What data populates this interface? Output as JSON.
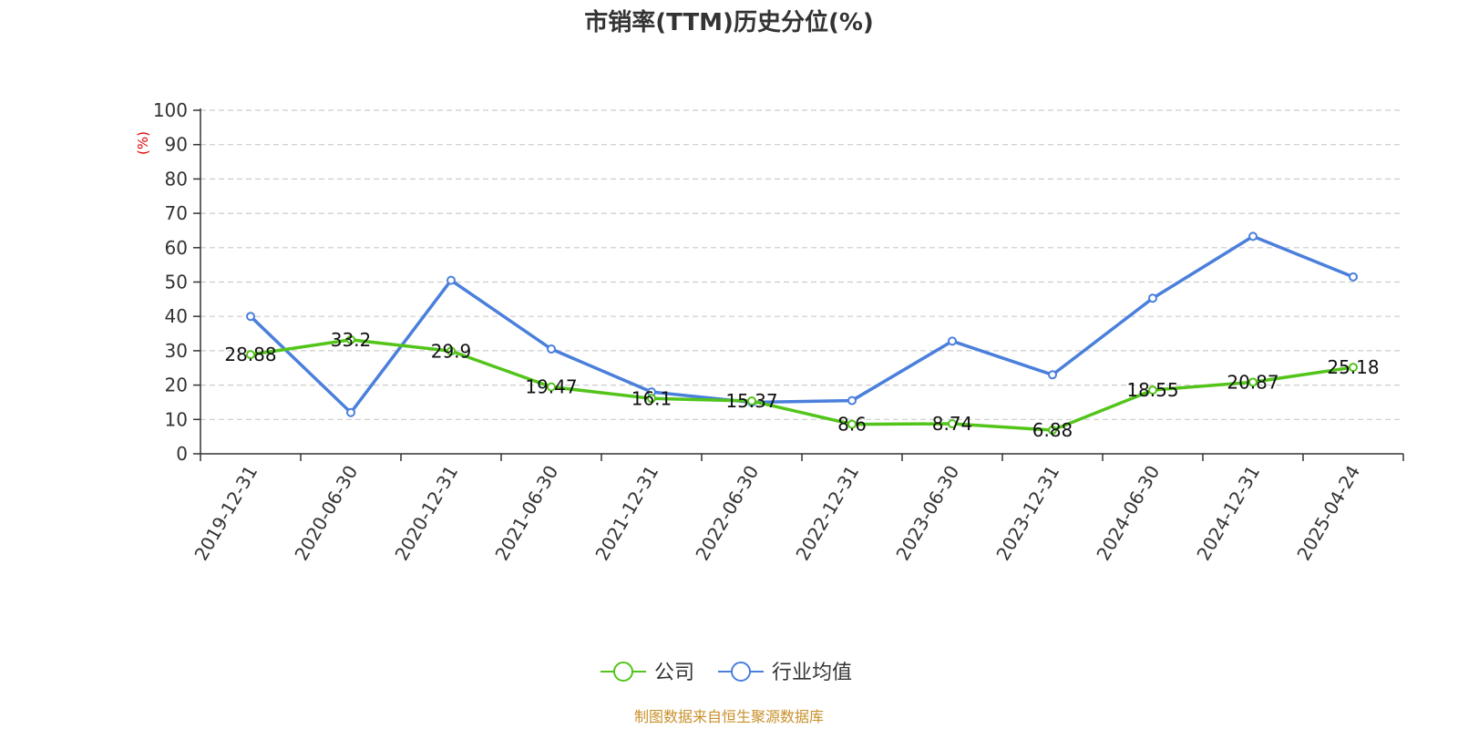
{
  "title": "市销率(TTM)历史分位(%)",
  "source": "制图数据来自恒生聚源数据库",
  "chart_data": {
    "type": "line",
    "title": "市销率(TTM)历史分位(%)",
    "xlabel": "",
    "ylabel": "(%)",
    "ylim": [
      0,
      100
    ],
    "yticks": [
      "0",
      "10",
      "20",
      "30",
      "40",
      "50",
      "60",
      "70",
      "80",
      "90",
      "100"
    ],
    "grid": true,
    "legend_position": "bottom",
    "categories": [
      "2019-12-31",
      "2020-06-30",
      "2020-12-31",
      "2021-06-30",
      "2021-12-31",
      "2022-06-30",
      "2022-12-31",
      "2023-06-30",
      "2023-12-31",
      "2024-06-30",
      "2024-12-31",
      "2025-04-24"
    ],
    "series": [
      {
        "name": "公司",
        "color": "#52c41a",
        "values": [
          28.88,
          33.2,
          29.9,
          19.47,
          16.1,
          15.37,
          8.6,
          8.74,
          6.88,
          18.55,
          20.87,
          25.18
        ],
        "labels": [
          "28.88",
          "33.2",
          "29.9",
          "19.47",
          "16.1",
          "15.37",
          "8.6",
          "8.74",
          "6.88",
          "18.55",
          "20.87",
          "25.18"
        ]
      },
      {
        "name": "行业均值",
        "color": "#4a7fdc",
        "values": [
          40,
          12,
          50.5,
          30.5,
          18,
          15,
          15.5,
          32.8,
          23,
          45.3,
          63.3,
          51.5
        ]
      }
    ]
  }
}
